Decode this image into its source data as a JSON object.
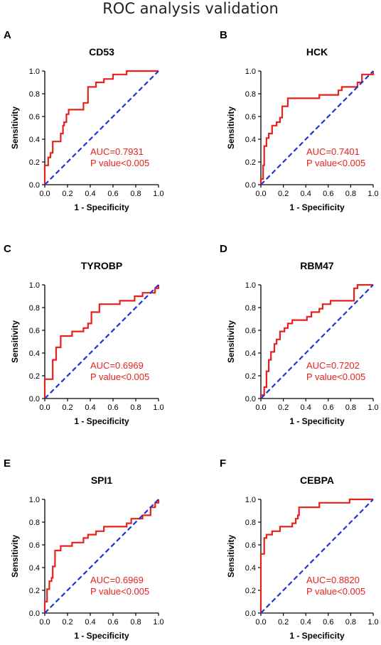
{
  "figure": {
    "title": "ROC analysis validation"
  },
  "colors": {
    "roc": "#e8211c",
    "reference": "#1f35d6",
    "axis": "#000000"
  },
  "chart_data": [
    {
      "type": "line",
      "panel": "A",
      "title": "CD53",
      "xlabel": "1 - Specificity",
      "ylabel": "Sensitivity",
      "xlim": [
        0,
        1
      ],
      "ylim": [
        0,
        1
      ],
      "xticks": [
        "0.0",
        "0.2",
        "0.4",
        "0.6",
        "0.8",
        "1.0"
      ],
      "yticks": [
        "0.0",
        "0.2",
        "0.4",
        "0.6",
        "0.8",
        "1.0"
      ],
      "grid": false,
      "annotations": [
        "AUC=0.7931",
        "P value<0.005"
      ],
      "series": [
        {
          "role": "roc",
          "points": [
            [
              0,
              0
            ],
            [
              0,
              0.17
            ],
            [
              0.03,
              0.17
            ],
            [
              0.03,
              0.24
            ],
            [
              0.05,
              0.24
            ],
            [
              0.05,
              0.28
            ],
            [
              0.07,
              0.28
            ],
            [
              0.07,
              0.38
            ],
            [
              0.14,
              0.38
            ],
            [
              0.14,
              0.45
            ],
            [
              0.16,
              0.45
            ],
            [
              0.16,
              0.52
            ],
            [
              0.17,
              0.52
            ],
            [
              0.17,
              0.55
            ],
            [
              0.19,
              0.55
            ],
            [
              0.19,
              0.62
            ],
            [
              0.21,
              0.62
            ],
            [
              0.21,
              0.66
            ],
            [
              0.34,
              0.66
            ],
            [
              0.34,
              0.72
            ],
            [
              0.38,
              0.72
            ],
            [
              0.38,
              0.86
            ],
            [
              0.45,
              0.86
            ],
            [
              0.45,
              0.9
            ],
            [
              0.52,
              0.9
            ],
            [
              0.52,
              0.93
            ],
            [
              0.6,
              0.93
            ],
            [
              0.6,
              0.97
            ],
            [
              0.72,
              0.97
            ],
            [
              0.72,
              1.0
            ],
            [
              1.0,
              1.0
            ]
          ]
        },
        {
          "role": "reference",
          "points": [
            [
              0,
              0
            ],
            [
              1,
              1
            ]
          ]
        }
      ]
    },
    {
      "type": "line",
      "panel": "B",
      "title": "HCK",
      "xlabel": "1 - Specificity",
      "ylabel": "Sensitivity",
      "xlim": [
        0,
        1
      ],
      "ylim": [
        0,
        1
      ],
      "xticks": [
        "0.0",
        "0.2",
        "0.4",
        "0.6",
        "0.8",
        "1.0"
      ],
      "yticks": [
        "0.0",
        "0.2",
        "0.4",
        "0.6",
        "0.8",
        "1.0"
      ],
      "grid": false,
      "annotations": [
        "AUC=0.7401",
        "P value<0.005"
      ],
      "series": [
        {
          "role": "roc",
          "points": [
            [
              0,
              0
            ],
            [
              0,
              0.05
            ],
            [
              0.02,
              0.05
            ],
            [
              0.02,
              0.17
            ],
            [
              0.03,
              0.17
            ],
            [
              0.03,
              0.34
            ],
            [
              0.05,
              0.34
            ],
            [
              0.05,
              0.41
            ],
            [
              0.07,
              0.41
            ],
            [
              0.07,
              0.45
            ],
            [
              0.1,
              0.45
            ],
            [
              0.1,
              0.52
            ],
            [
              0.14,
              0.52
            ],
            [
              0.14,
              0.55
            ],
            [
              0.17,
              0.55
            ],
            [
              0.17,
              0.59
            ],
            [
              0.19,
              0.59
            ],
            [
              0.19,
              0.69
            ],
            [
              0.24,
              0.69
            ],
            [
              0.24,
              0.76
            ],
            [
              0.52,
              0.76
            ],
            [
              0.52,
              0.79
            ],
            [
              0.69,
              0.79
            ],
            [
              0.69,
              0.83
            ],
            [
              0.72,
              0.83
            ],
            [
              0.72,
              0.86
            ],
            [
              0.86,
              0.86
            ],
            [
              0.86,
              0.9
            ],
            [
              0.9,
              0.9
            ],
            [
              0.9,
              0.97
            ],
            [
              1.0,
              0.97
            ],
            [
              1.0,
              1.0
            ]
          ]
        },
        {
          "role": "reference",
          "points": [
            [
              0,
              0
            ],
            [
              1,
              1
            ]
          ]
        }
      ]
    },
    {
      "type": "line",
      "panel": "C",
      "title": "TYROBP",
      "xlabel": "1 - Specificity",
      "ylabel": "Sensitivity",
      "xlim": [
        0,
        1
      ],
      "ylim": [
        0,
        1
      ],
      "xticks": [
        "0.0",
        "0.2",
        "0.4",
        "0.6",
        "0.8",
        "1.0"
      ],
      "yticks": [
        "0.0",
        "0.2",
        "0.4",
        "0.6",
        "0.8",
        "1.0"
      ],
      "grid": false,
      "annotations": [
        "AUC=0.6969",
        "P value<0.005"
      ],
      "series": [
        {
          "role": "roc",
          "points": [
            [
              0,
              0
            ],
            [
              0,
              0.17
            ],
            [
              0.07,
              0.17
            ],
            [
              0.07,
              0.34
            ],
            [
              0.1,
              0.34
            ],
            [
              0.1,
              0.45
            ],
            [
              0.14,
              0.45
            ],
            [
              0.14,
              0.55
            ],
            [
              0.24,
              0.55
            ],
            [
              0.24,
              0.59
            ],
            [
              0.34,
              0.59
            ],
            [
              0.34,
              0.62
            ],
            [
              0.38,
              0.62
            ],
            [
              0.38,
              0.66
            ],
            [
              0.41,
              0.66
            ],
            [
              0.41,
              0.76
            ],
            [
              0.48,
              0.76
            ],
            [
              0.48,
              0.83
            ],
            [
              0.66,
              0.83
            ],
            [
              0.66,
              0.86
            ],
            [
              0.79,
              0.86
            ],
            [
              0.79,
              0.9
            ],
            [
              0.86,
              0.9
            ],
            [
              0.86,
              0.93
            ],
            [
              0.97,
              0.93
            ],
            [
              0.97,
              0.97
            ],
            [
              1.0,
              0.97
            ],
            [
              1.0,
              1.0
            ]
          ]
        },
        {
          "role": "reference",
          "points": [
            [
              0,
              0
            ],
            [
              1,
              1
            ]
          ]
        }
      ]
    },
    {
      "type": "line",
      "panel": "D",
      "title": "RBM47",
      "xlabel": "1 - Specificity",
      "ylabel": "Sensitivity",
      "xlim": [
        0,
        1
      ],
      "ylim": [
        0,
        1
      ],
      "xticks": [
        "0.0",
        "0.2",
        "0.4",
        "0.6",
        "0.8",
        "1.0"
      ],
      "yticks": [
        "0.0",
        "0.2",
        "0.4",
        "0.6",
        "0.8",
        "1.0"
      ],
      "grid": false,
      "annotations": [
        "AUC=0.7202",
        "P value<0.005"
      ],
      "series": [
        {
          "role": "roc",
          "points": [
            [
              0,
              0
            ],
            [
              0,
              0.03
            ],
            [
              0.03,
              0.03
            ],
            [
              0.03,
              0.1
            ],
            [
              0.05,
              0.1
            ],
            [
              0.05,
              0.24
            ],
            [
              0.07,
              0.24
            ],
            [
              0.07,
              0.34
            ],
            [
              0.09,
              0.34
            ],
            [
              0.09,
              0.41
            ],
            [
              0.12,
              0.41
            ],
            [
              0.12,
              0.48
            ],
            [
              0.14,
              0.48
            ],
            [
              0.14,
              0.52
            ],
            [
              0.17,
              0.52
            ],
            [
              0.17,
              0.59
            ],
            [
              0.21,
              0.59
            ],
            [
              0.21,
              0.62
            ],
            [
              0.24,
              0.62
            ],
            [
              0.24,
              0.66
            ],
            [
              0.28,
              0.66
            ],
            [
              0.28,
              0.69
            ],
            [
              0.41,
              0.69
            ],
            [
              0.41,
              0.72
            ],
            [
              0.45,
              0.72
            ],
            [
              0.45,
              0.76
            ],
            [
              0.52,
              0.76
            ],
            [
              0.52,
              0.79
            ],
            [
              0.55,
              0.79
            ],
            [
              0.55,
              0.83
            ],
            [
              0.62,
              0.83
            ],
            [
              0.62,
              0.86
            ],
            [
              0.83,
              0.86
            ],
            [
              0.83,
              0.97
            ],
            [
              0.86,
              0.97
            ],
            [
              0.86,
              1.0
            ],
            [
              1.0,
              1.0
            ]
          ]
        },
        {
          "role": "reference",
          "points": [
            [
              0,
              0
            ],
            [
              1,
              1
            ]
          ]
        }
      ]
    },
    {
      "type": "line",
      "panel": "E",
      "title": "SPI1",
      "xlabel": "1 - Specificity",
      "ylabel": "Sensitivity",
      "xlim": [
        0,
        1
      ],
      "ylim": [
        0,
        1
      ],
      "xticks": [
        "0.0",
        "0.2",
        "0.4",
        "0.6",
        "0.8",
        "1.0"
      ],
      "yticks": [
        "0.0",
        "0.2",
        "0.4",
        "0.6",
        "0.8",
        "1.0"
      ],
      "grid": false,
      "annotations": [
        "AUC=0.6969",
        "P value<0.005"
      ],
      "series": [
        {
          "role": "roc",
          "points": [
            [
              0,
              0
            ],
            [
              0,
              0.1
            ],
            [
              0.02,
              0.1
            ],
            [
              0.02,
              0.21
            ],
            [
              0.04,
              0.21
            ],
            [
              0.04,
              0.28
            ],
            [
              0.06,
              0.28
            ],
            [
              0.06,
              0.31
            ],
            [
              0.07,
              0.31
            ],
            [
              0.07,
              0.41
            ],
            [
              0.09,
              0.41
            ],
            [
              0.09,
              0.55
            ],
            [
              0.14,
              0.55
            ],
            [
              0.14,
              0.59
            ],
            [
              0.24,
              0.59
            ],
            [
              0.24,
              0.62
            ],
            [
              0.34,
              0.62
            ],
            [
              0.34,
              0.66
            ],
            [
              0.38,
              0.66
            ],
            [
              0.38,
              0.69
            ],
            [
              0.45,
              0.69
            ],
            [
              0.45,
              0.72
            ],
            [
              0.52,
              0.72
            ],
            [
              0.52,
              0.76
            ],
            [
              0.72,
              0.76
            ],
            [
              0.72,
              0.79
            ],
            [
              0.76,
              0.79
            ],
            [
              0.76,
              0.83
            ],
            [
              0.86,
              0.83
            ],
            [
              0.86,
              0.86
            ],
            [
              0.93,
              0.86
            ],
            [
              0.93,
              0.93
            ],
            [
              0.97,
              0.93
            ],
            [
              0.97,
              0.97
            ],
            [
              1.0,
              0.97
            ],
            [
              1.0,
              1.0
            ]
          ]
        },
        {
          "role": "reference",
          "points": [
            [
              0,
              0
            ],
            [
              1,
              1
            ]
          ]
        }
      ]
    },
    {
      "type": "line",
      "panel": "F",
      "title": "CEBPA",
      "xlabel": "1 - Specificity",
      "ylabel": "Sensitivity",
      "xlim": [
        0,
        1
      ],
      "ylim": [
        0,
        1
      ],
      "xticks": [
        "0.0",
        "0.2",
        "0.4",
        "0.6",
        "0.8",
        "1.0"
      ],
      "yticks": [
        "0.0",
        "0.2",
        "0.4",
        "0.6",
        "0.8",
        "1.0"
      ],
      "grid": false,
      "annotations": [
        "AUC=0.8820",
        "P value<0.005"
      ],
      "series": [
        {
          "role": "roc",
          "points": [
            [
              0,
              0
            ],
            [
              0,
              0.52
            ],
            [
              0.03,
              0.52
            ],
            [
              0.03,
              0.66
            ],
            [
              0.05,
              0.66
            ],
            [
              0.05,
              0.69
            ],
            [
              0.1,
              0.69
            ],
            [
              0.1,
              0.72
            ],
            [
              0.17,
              0.72
            ],
            [
              0.17,
              0.76
            ],
            [
              0.28,
              0.76
            ],
            [
              0.28,
              0.79
            ],
            [
              0.31,
              0.79
            ],
            [
              0.31,
              0.83
            ],
            [
              0.33,
              0.83
            ],
            [
              0.33,
              0.86
            ],
            [
              0.34,
              0.86
            ],
            [
              0.34,
              0.93
            ],
            [
              0.52,
              0.93
            ],
            [
              0.52,
              0.97
            ],
            [
              0.79,
              0.97
            ],
            [
              0.79,
              1.0
            ],
            [
              1.0,
              1.0
            ]
          ]
        },
        {
          "role": "reference",
          "points": [
            [
              0,
              0
            ],
            [
              1,
              1
            ]
          ]
        }
      ]
    }
  ]
}
